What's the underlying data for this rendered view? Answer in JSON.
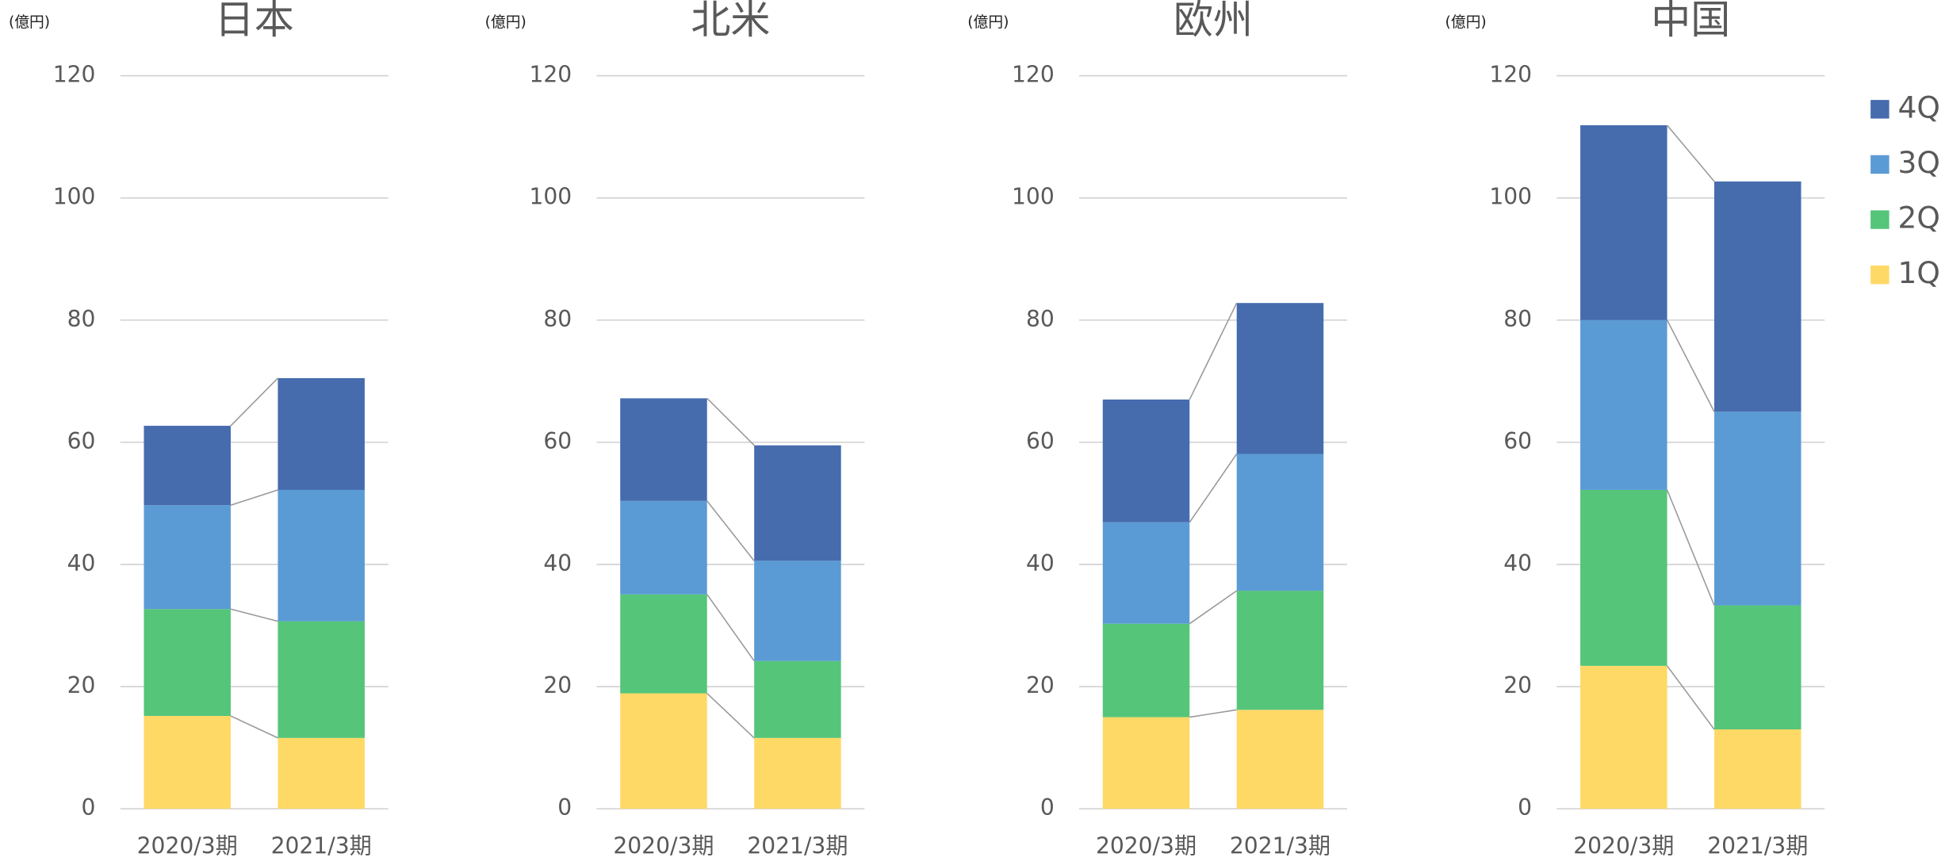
{
  "chart_data": [
    {
      "type": "bar",
      "stacked": true,
      "title": "日本",
      "y_label": "(億円)",
      "categories": [
        "2020/3期",
        "2021/3期"
      ],
      "series": [
        {
          "color": "#ffd966",
          "values": [
            15.2,
            11.6
          ]
        },
        {
          "color": "#55c57a",
          "values": [
            17.5,
            19.1
          ]
        },
        {
          "color": "#5b9bd5",
          "values": [
            17,
            21.5
          ]
        },
        {
          "color": "#466cae",
          "values": [
            13,
            18.3
          ]
        }
      ],
      "ylim": [
        0,
        120
      ],
      "yticks": [
        0,
        20,
        40,
        60,
        80,
        100,
        120
      ],
      "grid": true
    },
    {
      "type": "bar",
      "stacked": true,
      "title": "北米",
      "y_label": "(億円)",
      "categories": [
        "2020/3期",
        "2021/3期"
      ],
      "series": [
        {
          "color": "#ffd966",
          "values": [
            18.9,
            11.6
          ]
        },
        {
          "color": "#55c57a",
          "values": [
            16.2,
            12.6
          ]
        },
        {
          "color": "#5b9bd5",
          "values": [
            15.3,
            16.4
          ]
        },
        {
          "color": "#466cae",
          "values": [
            16.8,
            18.9
          ]
        }
      ],
      "ylim": [
        0,
        120
      ],
      "yticks": [
        0,
        20,
        40,
        60,
        80,
        100,
        120
      ],
      "grid": true
    },
    {
      "type": "bar",
      "stacked": true,
      "title": "欧州",
      "y_label": "(億円)",
      "categories": [
        "2020/3期",
        "2021/3期"
      ],
      "series": [
        {
          "color": "#ffd966",
          "values": [
            15,
            16.2
          ]
        },
        {
          "color": "#55c57a",
          "values": [
            15.3,
            19.5
          ]
        },
        {
          "color": "#5b9bd5",
          "values": [
            16.6,
            22.4
          ]
        },
        {
          "color": "#466cae",
          "values": [
            20.1,
            24.7
          ]
        }
      ],
      "ylim": [
        0,
        120
      ],
      "yticks": [
        0,
        20,
        40,
        60,
        80,
        100,
        120
      ],
      "grid": true
    },
    {
      "type": "bar",
      "stacked": true,
      "title": "中国",
      "y_label": "(億円)",
      "categories": [
        "2020/3期",
        "2021/3期"
      ],
      "series": [
        {
          "name": "1Q",
          "color": "#ffd966",
          "values": [
            23.4,
            13
          ]
        },
        {
          "name": "2Q",
          "color": "#55c57a",
          "values": [
            28.8,
            20.3
          ]
        },
        {
          "name": "3Q",
          "color": "#5b9bd5",
          "values": [
            27.8,
            31.7
          ]
        },
        {
          "name": "4Q",
          "color": "#466cae",
          "values": [
            31.9,
            37.7
          ]
        }
      ],
      "ylim": [
        0,
        120
      ],
      "yticks": [
        0,
        20,
        40,
        60,
        80,
        100,
        120
      ],
      "grid": true,
      "legend": "right"
    }
  ]
}
